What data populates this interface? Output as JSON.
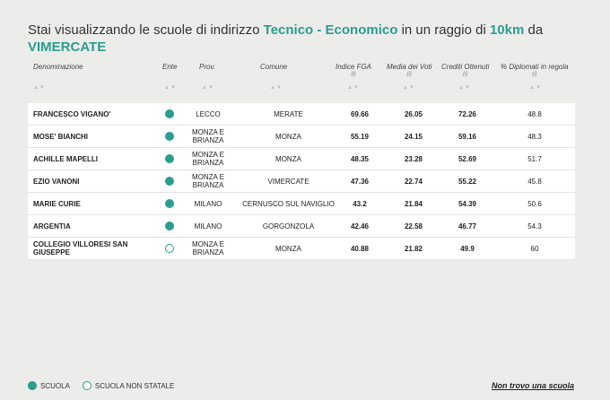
{
  "title": {
    "prefix": "Stai visualizzando le scuole di indirizzo",
    "indirizzo": "Tecnico - Economico",
    "mid": "in un raggio di",
    "radius": "10km",
    "suffix": "da",
    "city": "VIMERCATE"
  },
  "columns": {
    "name": "Denominazione",
    "ente": "Ente",
    "prov": "Prov.",
    "comune": "Comune",
    "fga": "Indice FGA",
    "media": "Media dei Voti",
    "crediti": "Crediti Ottenuti",
    "diplomati": "% Diplomati in regola",
    "info": "(i)",
    "sort": "▲▼"
  },
  "rows": [
    {
      "name": "FRANCESCO VIGANO'",
      "statale": true,
      "prov": "LECCO",
      "comune": "MERATE",
      "fga": "69.66",
      "media": "26.05",
      "crediti": "72.26",
      "diplomati": "48.8"
    },
    {
      "name": "MOSE' BIANCHI",
      "statale": true,
      "prov": "MONZA E BRIANZA",
      "comune": "MONZA",
      "fga": "55.19",
      "media": "24.15",
      "crediti": "59.16",
      "diplomati": "48.3"
    },
    {
      "name": "ACHILLE MAPELLI",
      "statale": true,
      "prov": "MONZA E BRIANZA",
      "comune": "MONZA",
      "fga": "48.35",
      "media": "23.28",
      "crediti": "52.69",
      "diplomati": "51.7"
    },
    {
      "name": "EZIO VANONI",
      "statale": true,
      "prov": "MONZA E BRIANZA",
      "comune": "VIMERCATE",
      "fga": "47.36",
      "media": "22.74",
      "crediti": "55.22",
      "diplomati": "45.8"
    },
    {
      "name": "MARIE CURIE",
      "statale": true,
      "prov": "MILANO",
      "comune": "CERNUSCO SUL NAVIGLIO",
      "fga": "43.2",
      "media": "21.84",
      "crediti": "54.39",
      "diplomati": "50.6"
    },
    {
      "name": "ARGENTIA",
      "statale": true,
      "prov": "MILANO",
      "comune": "GORGONZOLA",
      "fga": "42.46",
      "media": "22.58",
      "crediti": "46.77",
      "diplomati": "54.3"
    },
    {
      "name": "COLLEGIO VILLORESI SAN GIUSEPPE",
      "statale": false,
      "prov": "MONZA E BRIANZA",
      "comune": "MONZA",
      "fga": "40.88",
      "media": "21.82",
      "crediti": "49.9",
      "diplomati": "60"
    }
  ],
  "legend": {
    "statale": "SCUOLA",
    "non_statale": "SCUOLA NON STATALE"
  },
  "link": "Non trovo una scuola",
  "colors": {
    "accent": "#2a9d8f",
    "background": "#ececea"
  }
}
